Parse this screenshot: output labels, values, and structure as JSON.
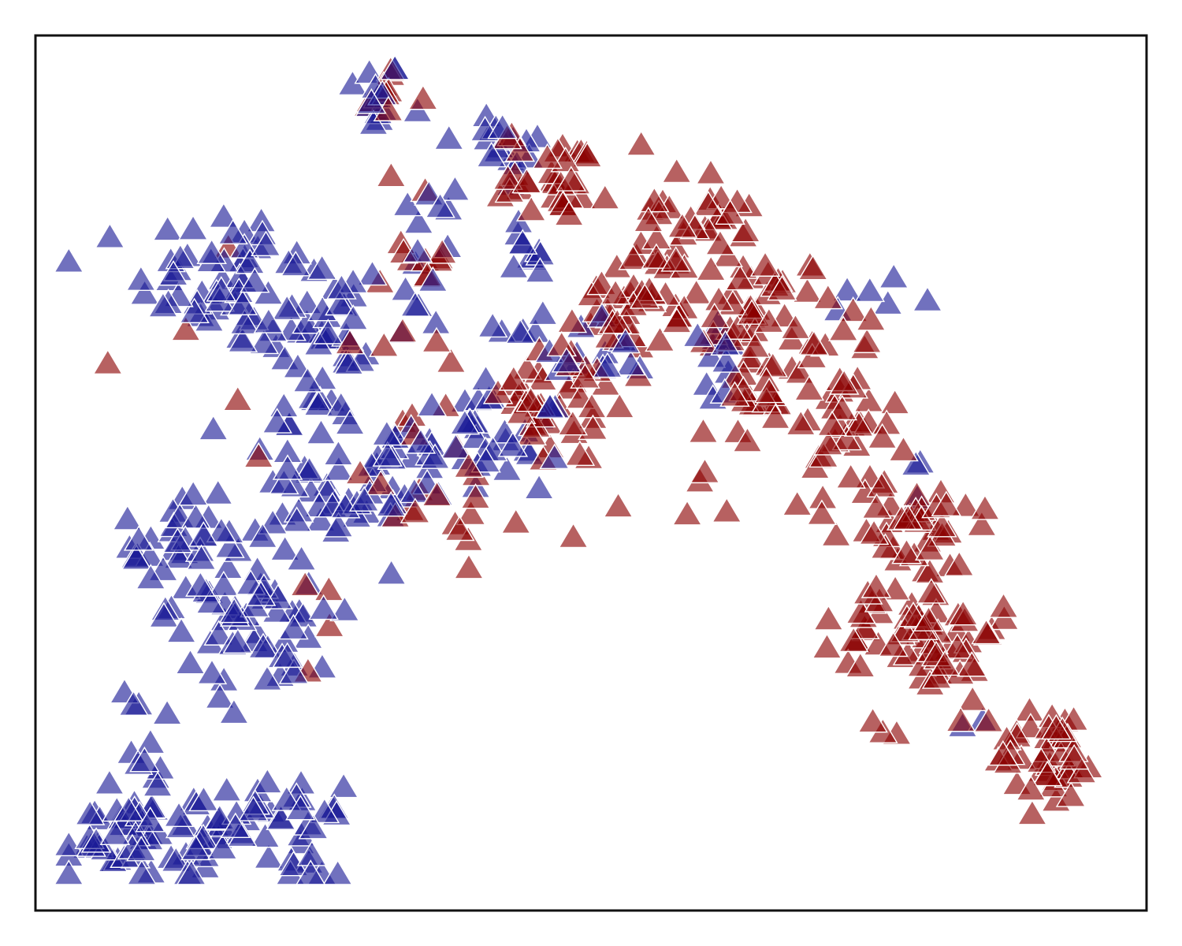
{
  "chart_data": {
    "type": "scatter",
    "title": "",
    "xlabel": "",
    "ylabel": "",
    "xlim": [
      0,
      100
    ],
    "ylim": [
      0,
      100
    ],
    "grid": false,
    "legend": false,
    "marker": "triangle",
    "series": [
      {
        "color": "#1a1a96",
        "clusters": [
          {
            "cx": 30.5,
            "cy": 93.0,
            "sx": 1.4,
            "sy": 2.5,
            "n": 14
          },
          {
            "cx": 42.0,
            "cy": 87.0,
            "sx": 2.6,
            "sy": 2.5,
            "n": 16
          },
          {
            "cx": 35.5,
            "cy": 75.0,
            "sx": 1.5,
            "sy": 5.0,
            "n": 14
          },
          {
            "cx": 17.5,
            "cy": 72.0,
            "sx": 4.2,
            "sy": 4.2,
            "n": 60
          },
          {
            "cx": 26.0,
            "cy": 65.0,
            "sx": 3.0,
            "sy": 5.5,
            "n": 40
          },
          {
            "cx": 24.5,
            "cy": 51.0,
            "sx": 2.0,
            "sy": 5.0,
            "n": 24
          },
          {
            "cx": 39.0,
            "cy": 53.0,
            "sx": 4.5,
            "sy": 3.5,
            "n": 50
          },
          {
            "cx": 29.0,
            "cy": 47.0,
            "sx": 3.0,
            "sy": 2.0,
            "n": 20
          },
          {
            "cx": 45.5,
            "cy": 63.0,
            "sx": 2.0,
            "sy": 3.0,
            "n": 14
          },
          {
            "cx": 13.0,
            "cy": 42.0,
            "sx": 2.2,
            "sy": 5.5,
            "n": 36
          },
          {
            "cx": 20.5,
            "cy": 34.0,
            "sx": 3.5,
            "sy": 5.0,
            "n": 60
          },
          {
            "cx": 9.5,
            "cy": 19.0,
            "sx": 1.0,
            "sy": 4.0,
            "n": 12
          },
          {
            "cx": 7.0,
            "cy": 8.0,
            "sx": 2.8,
            "sy": 2.5,
            "n": 40
          },
          {
            "cx": 16.5,
            "cy": 9.0,
            "sx": 3.0,
            "sy": 2.5,
            "n": 40
          },
          {
            "cx": 24.5,
            "cy": 8.0,
            "sx": 1.5,
            "sy": 3.0,
            "n": 24
          },
          {
            "cx": 52.5,
            "cy": 64.0,
            "sx": 2.2,
            "sy": 2.0,
            "n": 8
          },
          {
            "cx": 62.0,
            "cy": 64.0,
            "sx": 2.5,
            "sy": 3.0,
            "n": 6
          },
          {
            "cx": 75.0,
            "cy": 70.0,
            "sx": 3.0,
            "sy": 2.0,
            "n": 6
          },
          {
            "cx": 61.5,
            "cy": 59.0,
            "sx": 1.0,
            "sy": 4.0,
            "n": 6
          },
          {
            "cx": 79.5,
            "cy": 49.5,
            "sx": 0.5,
            "sy": 1.5,
            "n": 3
          },
          {
            "cx": 84.5,
            "cy": 21.0,
            "sx": 1.0,
            "sy": 1.0,
            "n": 2
          },
          {
            "cx": 44.5,
            "cy": 75.0,
            "sx": 1.0,
            "sy": 2.5,
            "n": 10
          }
        ]
      },
      {
        "color": "#8b0000",
        "clusters": [
          {
            "cx": 32.0,
            "cy": 92.0,
            "sx": 1.5,
            "sy": 3.0,
            "n": 10
          },
          {
            "cx": 47.0,
            "cy": 84.0,
            "sx": 2.5,
            "sy": 2.5,
            "n": 34
          },
          {
            "cx": 59.0,
            "cy": 79.0,
            "sx": 2.5,
            "sy": 2.5,
            "n": 30
          },
          {
            "cx": 54.0,
            "cy": 70.0,
            "sx": 2.5,
            "sy": 3.0,
            "n": 36
          },
          {
            "cx": 65.0,
            "cy": 68.0,
            "sx": 3.5,
            "sy": 3.5,
            "n": 56
          },
          {
            "cx": 64.0,
            "cy": 57.0,
            "sx": 2.0,
            "sy": 3.0,
            "n": 18
          },
          {
            "cx": 47.0,
            "cy": 58.0,
            "sx": 4.0,
            "sy": 4.0,
            "n": 40
          },
          {
            "cx": 37.0,
            "cy": 47.0,
            "sx": 6.0,
            "sy": 5.0,
            "n": 22
          },
          {
            "cx": 34.5,
            "cy": 74.0,
            "sx": 1.5,
            "sy": 5.0,
            "n": 14
          },
          {
            "cx": 72.5,
            "cy": 55.0,
            "sx": 2.5,
            "sy": 4.0,
            "n": 36
          },
          {
            "cx": 78.5,
            "cy": 44.0,
            "sx": 3.0,
            "sy": 3.0,
            "n": 40
          },
          {
            "cx": 80.5,
            "cy": 32.0,
            "sx": 3.0,
            "sy": 4.0,
            "n": 60
          },
          {
            "cx": 91.5,
            "cy": 17.5,
            "sx": 2.5,
            "sy": 3.0,
            "n": 44
          },
          {
            "cx": 74.0,
            "cy": 33.0,
            "sx": 1.5,
            "sy": 2.0,
            "n": 10
          },
          {
            "cx": 60.0,
            "cy": 46.0,
            "sx": 1.0,
            "sy": 2.5,
            "n": 4
          },
          {
            "cx": 14.5,
            "cy": 66.0,
            "sx": 6.0,
            "sy": 8.0,
            "n": 6
          },
          {
            "cx": 25.0,
            "cy": 30.0,
            "sx": 1.5,
            "sy": 4.0,
            "n": 3
          },
          {
            "cx": 43.5,
            "cy": 58.0,
            "sx": 2.5,
            "sy": 2.5,
            "n": 6
          },
          {
            "cx": 76.5,
            "cy": 20.0,
            "sx": 1.0,
            "sy": 1.0,
            "n": 3
          }
        ]
      }
    ]
  }
}
